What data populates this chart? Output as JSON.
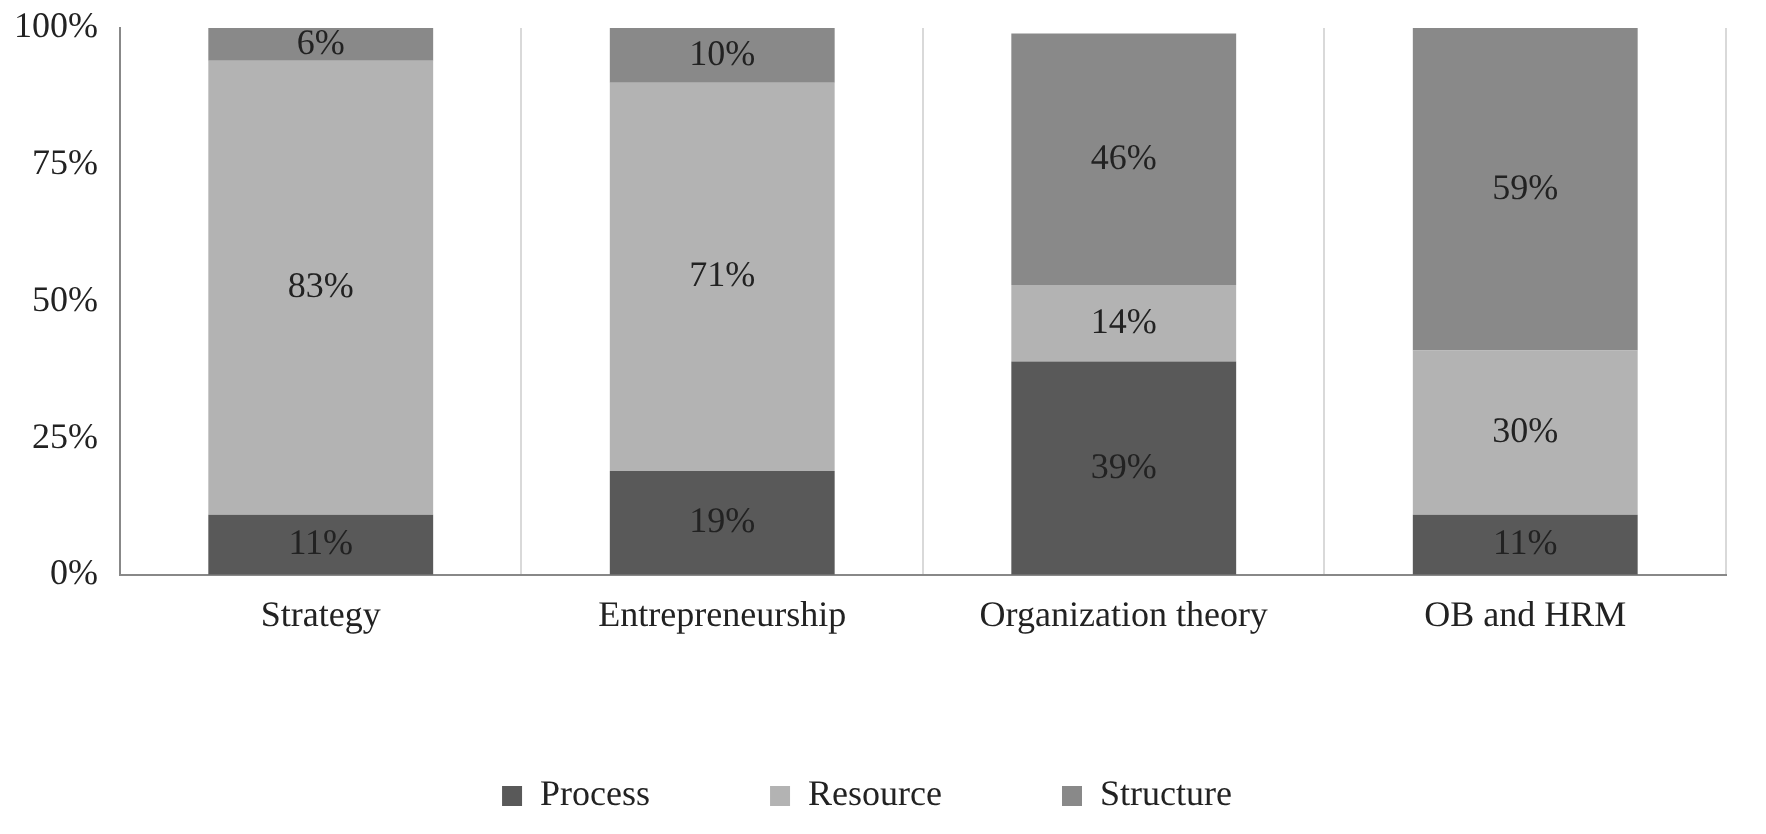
{
  "chart_data": {
    "type": "bar",
    "stacked": true,
    "categories": [
      "Strategy",
      "Entrepreneurship",
      "Organization theory",
      "OB and HRM"
    ],
    "series": [
      {
        "name": "Process",
        "color": "#595959",
        "values": [
          11,
          19,
          39,
          11
        ],
        "value_labels": [
          "11%",
          "19%",
          "39%",
          "11%"
        ]
      },
      {
        "name": "Resource",
        "color": "#b3b3b3",
        "values": [
          83,
          71,
          14,
          30
        ],
        "value_labels": [
          "83%",
          "71%",
          "14%",
          "30%"
        ]
      },
      {
        "name": "Structure",
        "color": "#898989",
        "values": [
          6,
          10,
          46,
          59
        ],
        "value_labels": [
          "6%",
          "10%",
          "46%",
          "59%"
        ]
      }
    ],
    "ylim": [
      0,
      100
    ],
    "yticks": [
      {
        "value": 0,
        "label": "0%"
      },
      {
        "value": 25,
        "label": "25%"
      },
      {
        "value": 50,
        "label": "50%"
      },
      {
        "value": 75,
        "label": "75%"
      },
      {
        "value": 100,
        "label": "100%"
      }
    ],
    "grid": "x",
    "legend": "bottom"
  }
}
